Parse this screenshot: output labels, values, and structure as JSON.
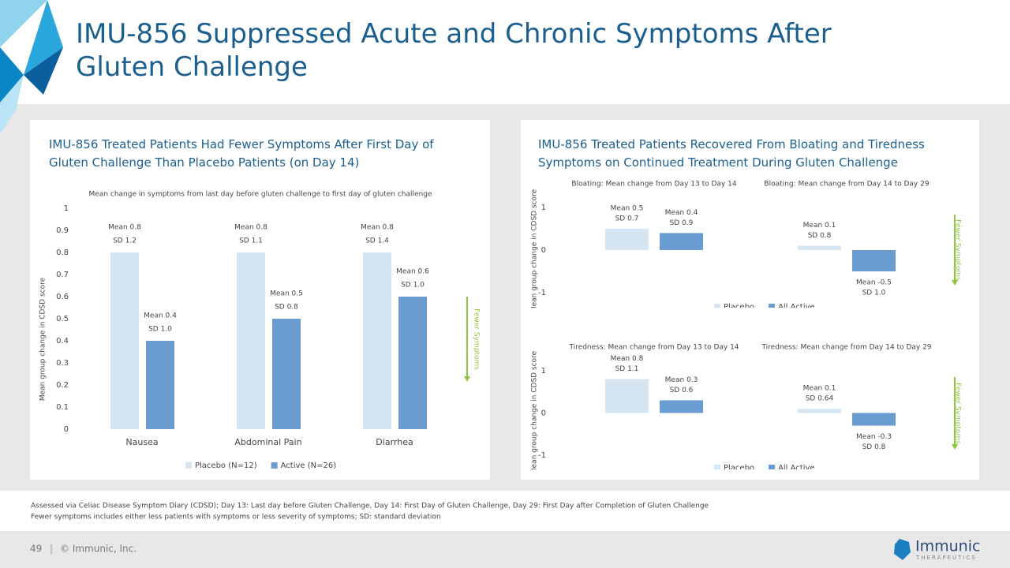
{
  "title": "IMU-856 Suppressed Acute and Chronic Symptoms After Gluten Challenge",
  "chart_data": [
    {
      "type": "bar",
      "title": "IMU-856 Treated Patients Had Fewer Symptoms After First Day of Gluten Challenge Than Placebo Patients (on Day 14)",
      "subtitle": "Mean change in symptoms from last day before gluten challenge to first day of gluten challenge",
      "y_label": "Mean group change in CDSD score",
      "annotation": "Fewer Symptoms",
      "categories": [
        "Nausea",
        "Abdominal Pain",
        "Diarrhea"
      ],
      "series": [
        {
          "name": "Placebo (N=12)",
          "color": "#d5e5f1",
          "values": [
            0.8,
            0.8,
            0.8
          ],
          "value_labels": [
            "Mean 0.8",
            "Mean 0.8",
            "Mean 0.8"
          ],
          "sd_labels": [
            "SD 1.2",
            "SD 1.1",
            "SD 1.4"
          ]
        },
        {
          "name": "Active (N=26)",
          "color": "#6a9bd1",
          "values": [
            0.4,
            0.5,
            0.6
          ],
          "value_labels": [
            "Mean 0.4",
            "Mean 0.5",
            "Mean 0.6"
          ],
          "sd_labels": [
            "SD 1.0",
            "SD 0.8",
            "SD 1.0"
          ]
        }
      ],
      "ylim": [
        0,
        1
      ],
      "yticks": [
        0,
        0.1,
        0.2,
        0.3,
        0.4,
        0.5,
        0.6,
        0.7,
        0.8,
        0.9,
        1
      ],
      "grid": false
    },
    {
      "type": "bar",
      "title": "IMU-856 Treated Patients Recovered From Bloating and Tiredness Symptoms on Continued Treatment During Gluten Challenge",
      "y_label": "Mean group change in CDSD score",
      "annotation": "Fewer Symptoms",
      "categories": [
        "Bloating: Mean change from Day 13 to Day 14",
        "Bloating: Mean change from Day 14 to Day 29"
      ],
      "series": [
        {
          "name": "Placebo",
          "color": "#d5e5f1",
          "values": [
            0.5,
            0.1
          ],
          "value_labels": [
            "Mean 0.5",
            "Mean 0.1"
          ],
          "sd_labels": [
            "SD 0.7",
            "SD 0.8"
          ]
        },
        {
          "name": "All Active",
          "color": "#6a9bd1",
          "values": [
            0.4,
            -0.5
          ],
          "value_labels": [
            "Mean 0.4",
            "Mean -0.5"
          ],
          "sd_labels": [
            "SD 0.9",
            "SD 1.0"
          ]
        }
      ],
      "ylim": [
        -1.25,
        1.25
      ],
      "yticks": [
        -1,
        0,
        1
      ],
      "grid": false
    },
    {
      "type": "bar",
      "y_label": "Mean group change in CDSD score",
      "annotation": "Fewer Symptoms",
      "categories": [
        "Tiredness: Mean change from Day 13 to Day 14",
        "Tiredness: Mean change from Day 14 to Day 29"
      ],
      "series": [
        {
          "name": "Placebo",
          "color": "#d5e5f1",
          "values": [
            0.8,
            0.1
          ],
          "value_labels": [
            "Mean 0.8",
            "Mean 0.1"
          ],
          "sd_labels": [
            "SD 1.1",
            "SD 0.64"
          ]
        },
        {
          "name": "All Active",
          "color": "#6a9bd1",
          "values": [
            0.3,
            -0.3
          ],
          "value_labels": [
            "Mean 0.3",
            "Mean -0.3"
          ],
          "sd_labels": [
            "SD 0.6",
            "SD 0.8"
          ]
        }
      ],
      "ylim": [
        -1.25,
        1.25
      ],
      "yticks": [
        -1,
        0,
        1
      ],
      "grid": false
    }
  ],
  "footnotes": [
    "Assessed via Celiac Disease Symptom Diary (CDSD); Day 13: Last day before Gluten Challenge, Day 14: First Day of Gluten Challenge, Day 29: First Day after Completion of Gluten Challenge",
    "Fewer symptoms includes either less patients with symptoms or less severity of symptoms; SD: standard deviation"
  ],
  "footer": {
    "page": "49",
    "separator": "|",
    "copyright": "© Immunic, Inc."
  },
  "logo": {
    "name": "Immunic",
    "tagline": "THERAPEUTICS"
  }
}
